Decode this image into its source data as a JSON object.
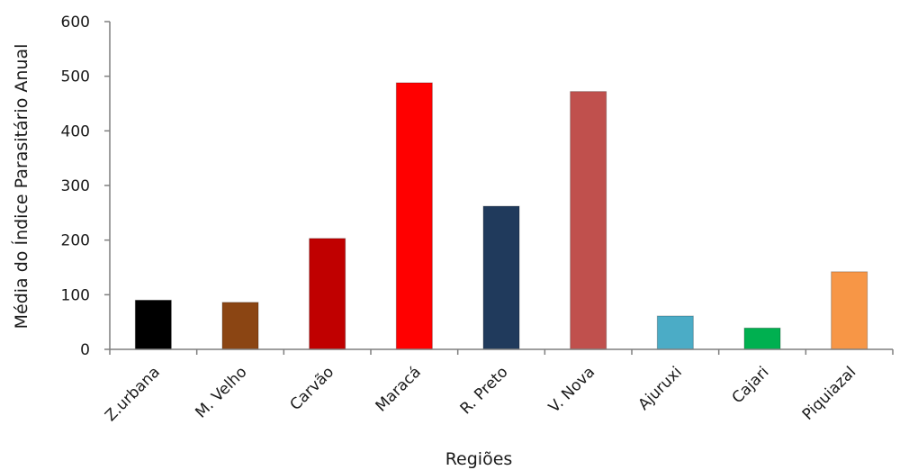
{
  "chart_data": {
    "type": "bar",
    "xlabel": "Regiões",
    "ylabel": "Média do Índice Parasitário Anual",
    "ylim": [
      0,
      600
    ],
    "yticks": [
      0,
      100,
      200,
      300,
      400,
      500,
      600
    ],
    "grid": false,
    "legend": "none",
    "categories": [
      "Z.urbana",
      "M. Velho",
      "Carvão",
      "Maracá",
      "R. Preto",
      "V. Nova",
      "Ajuruxi",
      "Cajari",
      "Piquiazal"
    ],
    "values": [
      90,
      86,
      203,
      488,
      262,
      472,
      61,
      39,
      142
    ],
    "colors": [
      "#000000",
      "#8b4513",
      "#c00000",
      "#ff0000",
      "#203a5c",
      "#c0504d",
      "#4bacc6",
      "#00b050",
      "#f79646"
    ]
  }
}
